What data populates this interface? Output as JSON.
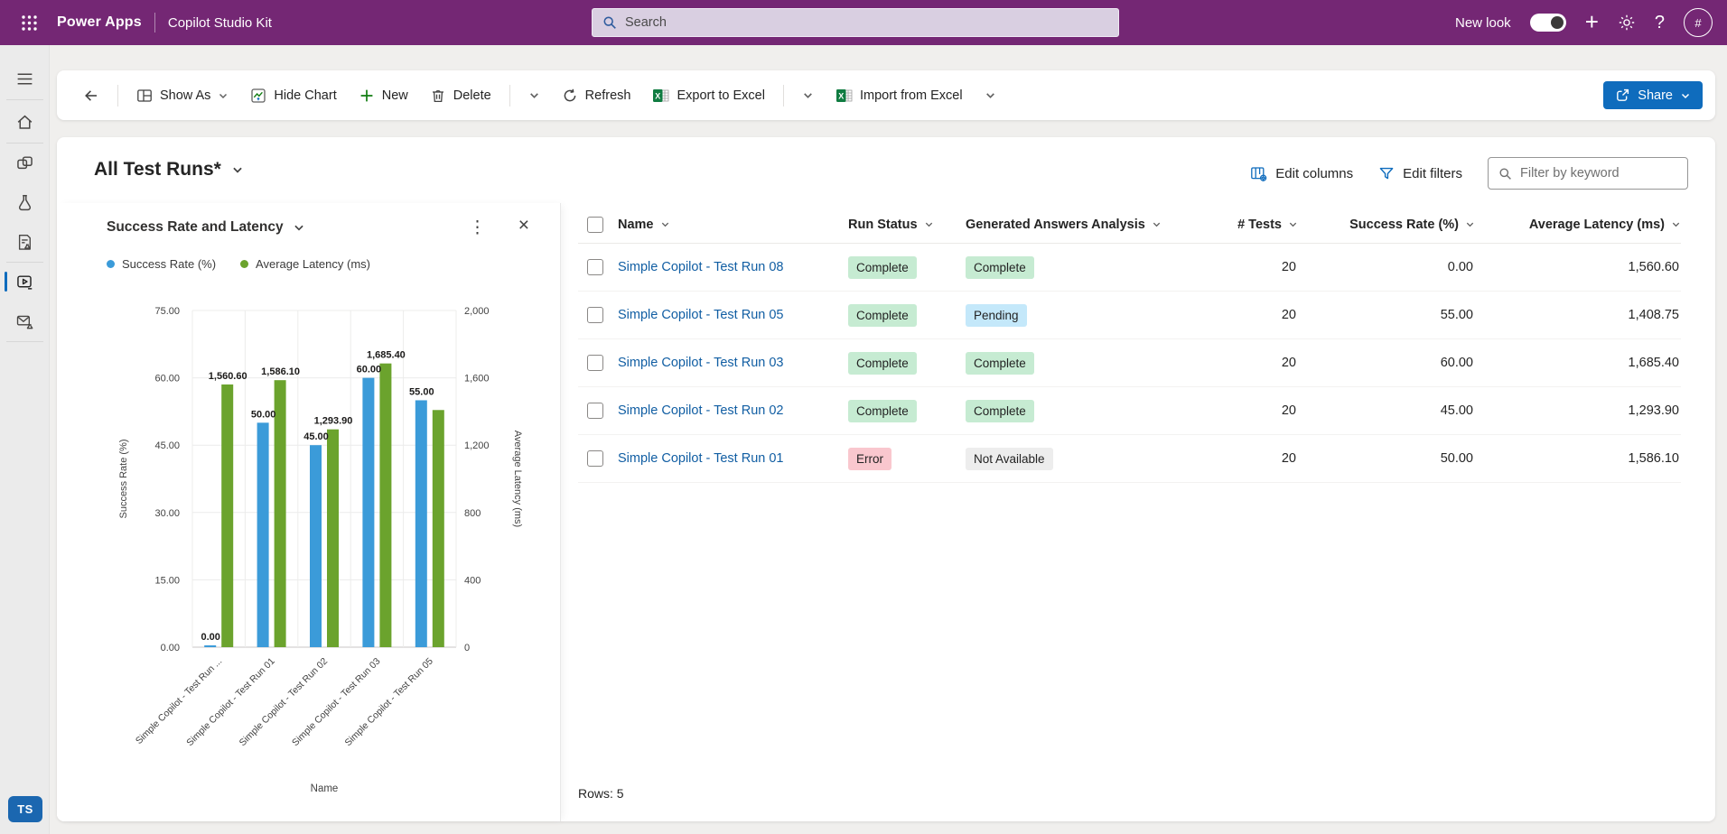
{
  "header": {
    "app_name": "Power Apps",
    "env_name": "Copilot Studio Kit",
    "search_placeholder": "Search",
    "new_look_label": "New look",
    "new_look_on": true,
    "avatar_text": "#"
  },
  "toolbar": {
    "show_as": "Show As",
    "hide_chart": "Hide Chart",
    "new": "New",
    "delete": "Delete",
    "refresh": "Refresh",
    "export_excel": "Export to Excel",
    "import_excel": "Import from Excel",
    "share": "Share"
  },
  "view": {
    "title": "All Test Runs*",
    "edit_columns": "Edit columns",
    "edit_filters": "Edit filters",
    "filter_placeholder": "Filter by keyword",
    "rows_label": "Rows: 5"
  },
  "chart": {
    "title": "Success Rate and Latency"
  },
  "chart_data": {
    "type": "bar",
    "title": "Success Rate and Latency",
    "categories": [
      "Simple Copilot - Test Run ...",
      "Simple Copilot - Test Run 01",
      "Simple Copilot - Test Run 02",
      "Simple Copilot - Test Run 03",
      "Simple Copilot - Test Run 05"
    ],
    "series": [
      {
        "name": "Success Rate (%)",
        "axis": "left",
        "color": "#3b9bd9",
        "values": [
          0,
          50,
          45,
          60,
          55
        ],
        "labels": [
          "0.00",
          "50.00",
          "45.00",
          "60.00",
          "55.00"
        ]
      },
      {
        "name": "Average Latency (ms)",
        "axis": "right",
        "color": "#6ba32d",
        "values": [
          1560.6,
          1586.1,
          1293.9,
          1685.4,
          1408.75
        ],
        "labels": [
          "1,560.60",
          "1,586.10",
          "1,293.90",
          "1,685.40",
          ""
        ]
      }
    ],
    "left_axis": {
      "label": "Success Rate (%)",
      "min": 0,
      "max": 75,
      "ticks": [
        "0.00",
        "15.00",
        "30.00",
        "45.00",
        "60.00",
        "75.00"
      ]
    },
    "right_axis": {
      "label": "Average Latency (ms)",
      "min": 0,
      "max": 2000,
      "ticks": [
        "0",
        "400",
        "800",
        "1,200",
        "1,600",
        "2,000"
      ]
    },
    "xlabel": "Name",
    "grid": true,
    "legend_position": "top-left"
  },
  "table": {
    "columns": [
      "Name",
      "Run Status",
      "Generated Answers Analysis",
      "# Tests",
      "Success Rate (%)",
      "Average Latency (ms)"
    ],
    "status_colors": {
      "Complete": "#c6ebd2",
      "Pending": "#c4e8fa",
      "Error": "#f9c7ce",
      "Not Available": "#ededed"
    },
    "rows": [
      {
        "name": "Simple Copilot - Test Run 08",
        "run_status": "Complete",
        "analysis": "Complete",
        "tests": "20",
        "success_rate": "0.00",
        "avg_latency": "1,560.60"
      },
      {
        "name": "Simple Copilot - Test Run 05",
        "run_status": "Complete",
        "analysis": "Pending",
        "tests": "20",
        "success_rate": "55.00",
        "avg_latency": "1,408.75"
      },
      {
        "name": "Simple Copilot - Test Run 03",
        "run_status": "Complete",
        "analysis": "Complete",
        "tests": "20",
        "success_rate": "60.00",
        "avg_latency": "1,685.40"
      },
      {
        "name": "Simple Copilot - Test Run 02",
        "run_status": "Complete",
        "analysis": "Complete",
        "tests": "20",
        "success_rate": "45.00",
        "avg_latency": "1,293.90"
      },
      {
        "name": "Simple Copilot - Test Run 01",
        "run_status": "Error",
        "analysis": "Not Available",
        "tests": "20",
        "success_rate": "50.00",
        "avg_latency": "1,586.10"
      }
    ]
  },
  "sidebar": {
    "user_badge": "TS",
    "selected_item": "test-runs"
  },
  "colors": {
    "brand_purple": "#742774",
    "accent_blue": "#0f6cbd",
    "link_blue": "#115ea3",
    "excel_green": "#107c41",
    "new_green": "#107c10",
    "bar_blue": "#3b9bd9",
    "bar_green": "#6ba32d"
  },
  "icons": {
    "app_launcher": "waffle-grid",
    "search": "magnifier",
    "settings": "gear",
    "help": "question-mark",
    "back": "arrow-left",
    "show_as": "grid-panes",
    "hide_chart": "chart-zigzag",
    "new": "plus",
    "delete": "trash",
    "refresh": "circular-arrow",
    "excel": "excel-workbook",
    "share": "box-arrow-out",
    "edit_columns": "table-gear",
    "edit_filters": "funnel",
    "kebab": "vertical-ellipsis",
    "close": "x"
  }
}
